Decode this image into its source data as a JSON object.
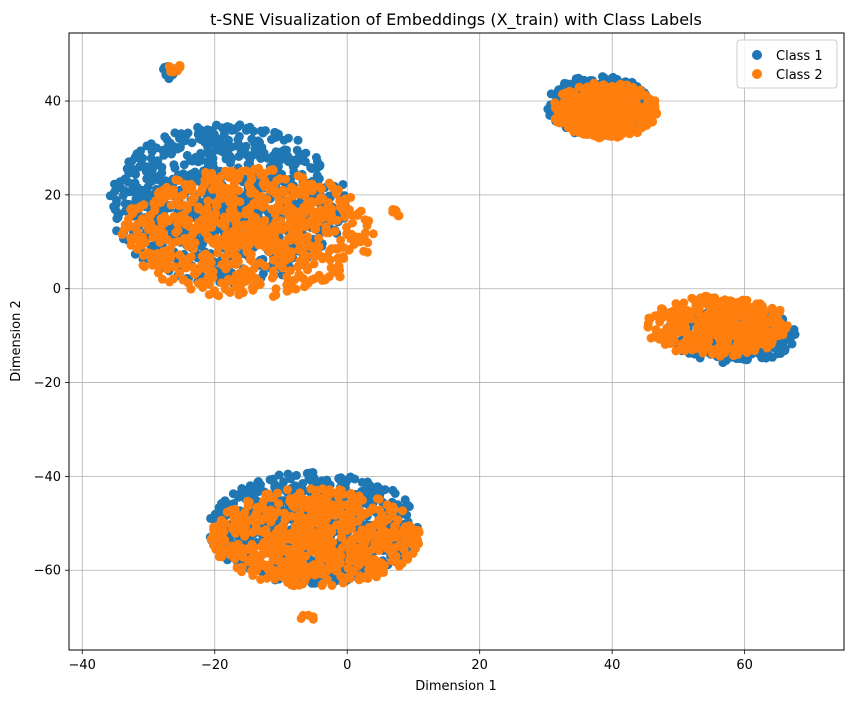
{
  "chart_data": {
    "type": "scatter",
    "title": "t-SNE Visualization of Embeddings (X_train) with Class Labels",
    "xlabel": "Dimension 1",
    "ylabel": "Dimension 2",
    "xlim": [
      -42,
      75
    ],
    "ylim": [
      -77,
      54.5
    ],
    "xticks": [
      -40,
      -20,
      0,
      20,
      40,
      60
    ],
    "yticks": [
      -60,
      -40,
      -20,
      0,
      20,
      40
    ],
    "xtick_labels": [
      "−40",
      "−20",
      "0",
      "20",
      "40",
      "60"
    ],
    "ytick_labels": [
      "−60",
      "−40",
      "−20",
      "0",
      "20",
      "40"
    ],
    "grid": true,
    "legend_position": "top-right",
    "series": [
      {
        "name": "Class 1",
        "color": "#1f77b4",
        "clusters": [
          {
            "center": [
              -18,
              18
            ],
            "radius": [
              18,
              17
            ],
            "count": 900
          },
          {
            "center": [
              -27,
              46
            ],
            "radius": [
              1.2,
              1.5
            ],
            "count": 25
          },
          {
            "center": [
              38,
              39
            ],
            "radius": [
              8,
              6.5
            ],
            "count": 300
          },
          {
            "center": [
              58,
              -10
            ],
            "radius": [
              10,
              6
            ],
            "count": 320
          },
          {
            "center": [
              -5,
              -51
            ],
            "radius": [
              16,
              12
            ],
            "count": 700
          }
        ]
      },
      {
        "name": "Class 2",
        "color": "#ff7f0e",
        "clusters": [
          {
            "center": [
              -15,
              12
            ],
            "radius": [
              19,
              14
            ],
            "count": 700
          },
          {
            "center": [
              -26,
              47
            ],
            "radius": [
              1.2,
              1
            ],
            "count": 12
          },
          {
            "center": [
              7.5,
              16.5
            ],
            "radius": [
              0.8,
              1.2
            ],
            "count": 6
          },
          {
            "center": [
              39,
              38
            ],
            "radius": [
              8,
              6
            ],
            "count": 380
          },
          {
            "center": [
              56,
              -8
            ],
            "radius": [
              11,
              6.5
            ],
            "count": 380
          },
          {
            "center": [
              -5,
              -53
            ],
            "radius": [
              16,
              10.5
            ],
            "count": 650
          },
          {
            "center": [
              -6,
              -70
            ],
            "radius": [
              1.2,
              0.8
            ],
            "count": 6
          }
        ]
      }
    ]
  }
}
